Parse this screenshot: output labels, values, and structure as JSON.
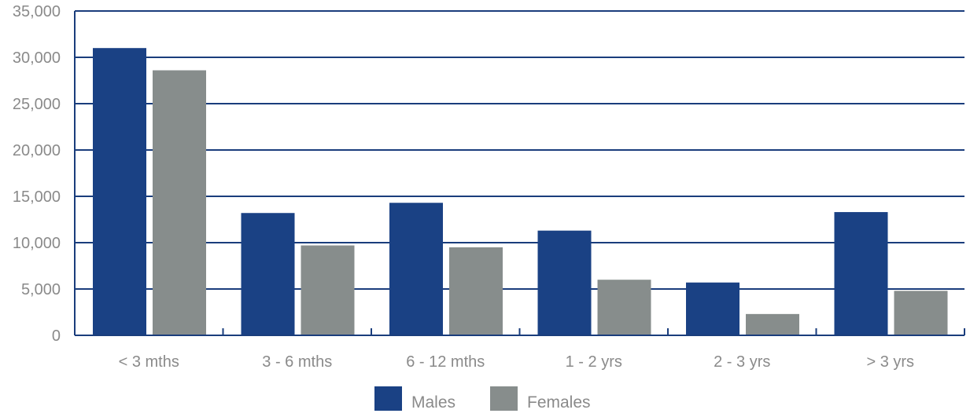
{
  "chart_data": {
    "type": "bar",
    "categories": [
      "< 3 mths",
      "3 - 6 mths",
      "6 - 12 mths",
      "1 - 2 yrs",
      "2 - 3 yrs",
      "> 3 yrs"
    ],
    "series": [
      {
        "name": "Males",
        "values": [
          31000,
          13200,
          14300,
          11300,
          5700,
          13300
        ]
      },
      {
        "name": "Females",
        "values": [
          28600,
          9700,
          9500,
          6000,
          2300,
          4800
        ]
      }
    ],
    "ylim": [
      0,
      35000
    ],
    "yticks": [
      0,
      5000,
      10000,
      15000,
      20000,
      25000,
      30000,
      35000
    ],
    "ytick_labels": [
      "0",
      "5,000",
      "10,000",
      "15,000",
      "20,000",
      "25,000",
      "30,000",
      "35,000"
    ],
    "grid": true,
    "legend_position": "bottom-center"
  },
  "colors": {
    "males": "#1a4184",
    "females": "#878d8c",
    "grid": "#1a3d7c",
    "tick_text": "#8a8a8a"
  }
}
